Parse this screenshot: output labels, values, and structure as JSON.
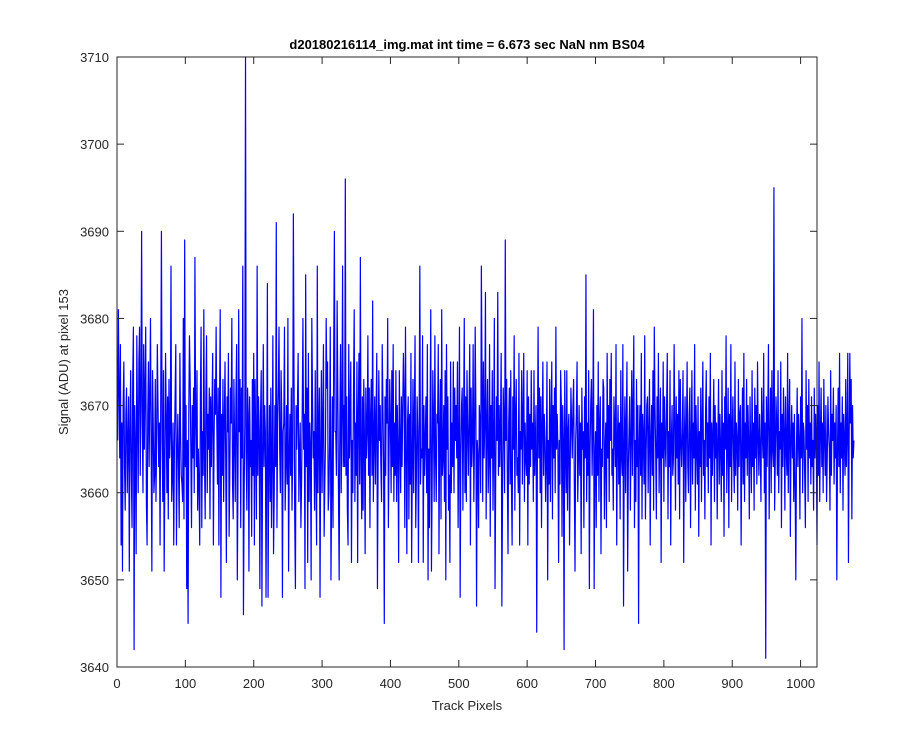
{
  "chart_data": {
    "type": "line",
    "title": "d20180216114_img.mat int time = 6.673 sec  NaN nm BS04",
    "xlabel": "Track Pixels",
    "ylabel": "Signal (ADU) at pixel 153",
    "xlim": [
      0,
      1024
    ],
    "ylim": [
      3640,
      3710
    ],
    "xticks": [
      0,
      100,
      200,
      300,
      400,
      500,
      600,
      700,
      800,
      900,
      1000
    ],
    "yticks": [
      3640,
      3650,
      3660,
      3670,
      3680,
      3690,
      3700,
      3710
    ],
    "grid": false,
    "legend": "none",
    "series": [
      {
        "color": "#0000ff",
        "x_start": 1,
        "x_step": 1,
        "y": [
          3666,
          3681,
          3672,
          3664,
          3677,
          3654,
          3668,
          3651,
          3670,
          3675,
          3663,
          3658,
          3669,
          3672,
          3660,
          3666,
          3671,
          3651,
          3667,
          3674,
          3662,
          3656,
          3673,
          3679,
          3642,
          3670,
          3665,
          3653,
          3678,
          3668,
          3660,
          3675,
          3679,
          3662,
          3671,
          3690,
          3668,
          3660,
          3677,
          3665,
          3672,
          3679,
          3659,
          3654,
          3669,
          3675,
          3663,
          3671,
          3680,
          3665,
          3651,
          3674,
          3668,
          3660,
          3662,
          3673,
          3659,
          3666,
          3677,
          3670,
          3663,
          3668,
          3654,
          3671,
          3690,
          3666,
          3659,
          3674,
          3651,
          3662,
          3676,
          3669,
          3660,
          3671,
          3657,
          3673,
          3664,
          3667,
          3686,
          3659,
          3662,
          3668,
          3654,
          3665,
          3671,
          3677,
          3654,
          3664,
          3669,
          3663,
          3656,
          3676,
          3667,
          3662,
          3661,
          3659,
          3680,
          3657,
          3689,
          3663,
          3670,
          3649,
          3666,
          3645,
          3669,
          3678,
          3673,
          3665,
          3656,
          3670,
          3664,
          3672,
          3660,
          3687,
          3668,
          3663,
          3674,
          3658,
          3665,
          3661,
          3654,
          3671,
          3679,
          3656,
          3667,
          3662,
          3681,
          3664,
          3657,
          3671,
          3678,
          3660,
          3669,
          3665,
          3672,
          3657,
          3671,
          3663,
          3670,
          3676,
          3654,
          3666,
          3673,
          3669,
          3679,
          3668,
          3661,
          3672,
          3654,
          3670,
          3681,
          3648,
          3669,
          3662,
          3673,
          3659,
          3668,
          3675,
          3664,
          3652,
          3671,
          3667,
          3676,
          3655,
          3662,
          3672,
          3668,
          3680,
          3661,
          3657,
          3673,
          3666,
          3659,
          3671,
          3677,
          3650,
          3662,
          3681,
          3667,
          3673,
          3656,
          3672,
          3664,
          3686,
          3646,
          3660,
          3668,
          3710,
          3664,
          3658,
          3672,
          3669,
          3651,
          3671,
          3663,
          3666,
          3655,
          3673,
          3662,
          3676,
          3654,
          3673,
          3665,
          3657,
          3686,
          3662,
          3671,
          3667,
          3649,
          3669,
          3674,
          3647,
          3664,
          3677,
          3663,
          3670,
          3667,
          3648,
          3664,
          3684,
          3648,
          3663,
          3670,
          3659,
          3672,
          3656,
          3664,
          3678,
          3653,
          3660,
          3670,
          3663,
          3691,
          3656,
          3668,
          3672,
          3679,
          3665,
          3660,
          3674,
          3669,
          3648,
          3667,
          3668,
          3679,
          3658,
          3663,
          3670,
          3661,
          3680,
          3651,
          3664,
          3669,
          3662,
          3672,
          3658,
          3664,
          3692,
          3673,
          3657,
          3649,
          3670,
          3665,
          3670,
          3676,
          3659,
          3664,
          3668,
          3656,
          3661,
          3670,
          3680,
          3665,
          3669,
          3649,
          3685,
          3663,
          3672,
          3652,
          3676,
          3659,
          3668,
          3665,
          3650,
          3680,
          3671,
          3664,
          3667,
          3658,
          3674,
          3662,
          3654,
          3686,
          3660,
          3667,
          3672,
          3648,
          3665,
          3674,
          3660,
          3668,
          3677,
          3655,
          3661,
          3666,
          3680,
          3672,
          3675,
          3658,
          3660,
          3666,
          3679,
          3650,
          3660,
          3671,
          3656,
          3676,
          3690,
          3667,
          3667,
          3662,
          3682,
          3672,
          3660,
          3650,
          3668,
          3677,
          3660,
          3669,
          3686,
          3663,
          3670,
          3663,
          3696,
          3662,
          3671,
          3658,
          3654,
          3677,
          3664,
          3669,
          3675,
          3652,
          3666,
          3660,
          3672,
          3681,
          3659,
          3668,
          3662,
          3675,
          3652,
          3669,
          3676,
          3661,
          3687,
          3664,
          3657,
          3671,
          3658,
          3673,
          3666,
          3653,
          3672,
          3664,
          3667,
          3678,
          3662,
          3672,
          3656,
          3669,
          3673,
          3662,
          3682,
          3659,
          3666,
          3671,
          3661,
          3669,
          3676,
          3649,
          3664,
          3674,
          3666,
          3670,
          3663,
          3659,
          3677,
          3670,
          3663,
          3645,
          3671,
          3662,
          3673,
          3668,
          3680,
          3656,
          3665,
          3673,
          3668,
          3660,
          3674,
          3663,
          3677,
          3659,
          3668,
          3662,
          3674,
          3659,
          3670,
          3665,
          3652,
          3674,
          3666,
          3660,
          3671,
          3663,
          3670,
          3676,
          3671,
          3656,
          3679,
          3665,
          3653,
          3668,
          3671,
          3657,
          3669,
          3661,
          3676,
          3652,
          3663,
          3673,
          3660,
          3669,
          3678,
          3656,
          3662,
          3671,
          3667,
          3652,
          3668,
          3686,
          3661,
          3665,
          3664,
          3678,
          3652,
          3670,
          3662,
          3666,
          3671,
          3660,
          3677,
          3650,
          3665,
          3656,
          3669,
          3681,
          3651,
          3661,
          3674,
          3668,
          3659,
          3678,
          3664,
          3659,
          3669,
          3668,
          3677,
          3653,
          3667,
          3673,
          3657,
          3681,
          3662,
          3664,
          3670,
          3659,
          3674,
          3650,
          3677,
          3665,
          3671,
          3658,
          3662,
          3652,
          3675,
          3660,
          3668,
          3663,
          3675,
          3660,
          3672,
          3666,
          3670,
          3664,
          3675,
          3656,
          3666,
          3679,
          3648,
          3664,
          3670,
          3672,
          3658,
          3668,
          3680,
          3660,
          3671,
          3659,
          3674,
          3667,
          3662,
          3669,
          3677,
          3654,
          3672,
          3663,
          3666,
          3677,
          3659,
          3666,
          3679,
          3669,
          3647,
          3666,
          3664,
          3656,
          3670,
          3668,
          3660,
          3686,
          3673,
          3659,
          3675,
          3664,
          3668,
          3683,
          3657,
          3667,
          3673,
          3660,
          3664,
          3677,
          3655,
          3670,
          3664,
          3674,
          3658,
          3666,
          3680,
          3649,
          3662,
          3671,
          3666,
          3683,
          3662,
          3670,
          3663,
          3668,
          3676,
          3647,
          3660,
          3672,
          3668,
          3660,
          3689,
          3666,
          3673,
          3662,
          3653,
          3668,
          3672,
          3661,
          3674,
          3661,
          3654,
          3671,
          3665,
          3678,
          3658,
          3669,
          3673,
          3662,
          3664,
          3660,
          3676,
          3654,
          3667,
          3665,
          3674,
          3661,
          3669,
          3676,
          3659,
          3668,
          3664,
          3662,
          3674,
          3654,
          3671,
          3661,
          3669,
          3663,
          3674,
          3665,
          3668,
          3659,
          3674,
          3662,
          3666,
          3670,
          3644,
          3665,
          3679,
          3664,
          3672,
          3660,
          3671,
          3656,
          3668,
          3675,
          3662,
          3669,
          3666,
          3659,
          3664,
          3675,
          3650,
          3666,
          3661,
          3673,
          3659,
          3668,
          3675,
          3657,
          3670,
          3664,
          3672,
          3660,
          3679,
          3665,
          3669,
          3665,
          3652,
          3666,
          3661,
          3674,
          3670,
          3655,
          3670,
          3666,
          3642,
          3674,
          3665,
          3660,
          3674,
          3658,
          3667,
          3669,
          3654,
          3663,
          3672,
          3668,
          3664,
          3670,
          3673,
          3661,
          3651,
          3666,
          3669,
          3675,
          3659,
          3664,
          3670,
          3662,
          3668,
          3653,
          3672,
          3665,
          3667,
          3656,
          3671,
          3664,
          3685,
          3659,
          3668,
          3662,
          3674,
          3649,
          3665,
          3670,
          3673,
          3662,
          3668,
          3681,
          3649,
          3664,
          3667,
          3656,
          3670,
          3662,
          3675,
          3659,
          3668,
          3671,
          3653,
          3665,
          3663,
          3673,
          3672,
          3657,
          3665,
          3668,
          3656,
          3676,
          3664,
          3670,
          3659,
          3673,
          3666,
          3676,
          3662,
          3665,
          3658,
          3671,
          3667,
          3663,
          3677,
          3654,
          3666,
          3670,
          3661,
          3668,
          3657,
          3674,
          3664,
          3662,
          3677,
          3647,
          3665,
          3671,
          3660,
          3668,
          3675,
          3651,
          3663,
          3667,
          3671,
          3658,
          3666,
          3674,
          3662,
          3670,
          3678,
          3656,
          3666,
          3659,
          3673,
          3663,
          3670,
          3645,
          3666,
          3670,
          3662,
          3676,
          3657,
          3669,
          3666,
          3661,
          3678,
          3657,
          3664,
          3670,
          3671,
          3660,
          3667,
          3673,
          3654,
          3666,
          3670,
          3662,
          3674,
          3658,
          3679,
          3670,
          3665,
          3657,
          3671,
          3664,
          3676,
          3660,
          3666,
          3672,
          3652,
          3668,
          3664,
          3675,
          3659,
          3671,
          3666,
          3663,
          3670,
          3676,
          3657,
          3667,
          3663,
          3674,
          3654,
          3666,
          3670,
          3662,
          3664,
          3677,
          3668,
          3658,
          3671,
          3664,
          3669,
          3661,
          3674,
          3657,
          3673,
          3666,
          3663,
          3667,
          3674,
          3652,
          3666,
          3671,
          3659,
          3667,
          3675,
          3663,
          3660,
          3669,
          3672,
          3656,
          3666,
          3674,
          3661,
          3668,
          3664,
          3677,
          3658,
          3670,
          3665,
          3661,
          3671,
          3655,
          3667,
          3663,
          3672,
          3659,
          3668,
          3675,
          3662,
          3666,
          3657,
          3669,
          3674,
          3663,
          3668,
          3660,
          3671,
          3664,
          3676,
          3654,
          3668,
          3662,
          3667,
          3673,
          3659,
          3670,
          3664,
          3668,
          3657,
          3666,
          3673,
          3661,
          3669,
          3665,
          3659,
          3674,
          3662,
          3668,
          3655,
          3671,
          3665,
          3678,
          3660,
          3666,
          3672,
          3656,
          3669,
          3663,
          3677,
          3659,
          3667,
          3671,
          3664,
          3660,
          3675,
          3662,
          3668,
          3666,
          3658,
          3673,
          3663,
          3669,
          3670,
          3654,
          3665,
          3672,
          3661,
          3676,
          3659,
          3668,
          3664,
          3673,
          3662,
          3670,
          3666,
          3657,
          3671,
          3665,
          3660,
          3674,
          3663,
          3668,
          3658,
          3672,
          3664,
          3670,
          3661,
          3675,
          3666,
          3662,
          3669,
          3665,
          3659,
          3672,
          3667,
          3664,
          3676,
          3660,
          3668,
          3641,
          3671,
          3663,
          3669,
          3677,
          3657,
          3666,
          3672,
          3660,
          3674,
          3665,
          3663,
          3695,
          3658,
          3664,
          3671,
          3668,
          3662,
          3674,
          3660,
          3667,
          3665,
          3675,
          3656,
          3669,
          3663,
          3672,
          3667,
          3658,
          3671,
          3665,
          3662,
          3676,
          3660,
          3668,
          3673,
          3655,
          3666,
          3670,
          3664,
          3668,
          3659,
          3669,
          3661,
          3650,
          3665,
          3672,
          3663,
          3669,
          3666,
          3657,
          3671,
          3664,
          3680,
          3660,
          3668,
          3667,
          3662,
          3656,
          3674,
          3665,
          3670,
          3659,
          3673,
          3664,
          3668,
          3661,
          3671,
          3663,
          3666,
          3658,
          3672,
          3664,
          3669,
          3665,
          3654,
          3670,
          3662,
          3675,
          3659,
          3667,
          3672,
          3663,
          3668,
          3660,
          3673,
          3666,
          3662,
          3670,
          3659,
          3664,
          3671,
          3667,
          3665,
          3658,
          3674,
          3662,
          3669,
          3666,
          3672,
          3661,
          3668,
          3664,
          3670,
          3650,
          3665,
          3672,
          3663,
          3676,
          3660,
          3668,
          3664,
          3671,
          3658,
          3669,
          3666,
          3662,
          3673,
          3663,
          3667,
          3676,
          3652,
          3666,
          3676,
          3668,
          3673,
          3657,
          3670,
          3664,
          3666
        ]
      }
    ]
  }
}
